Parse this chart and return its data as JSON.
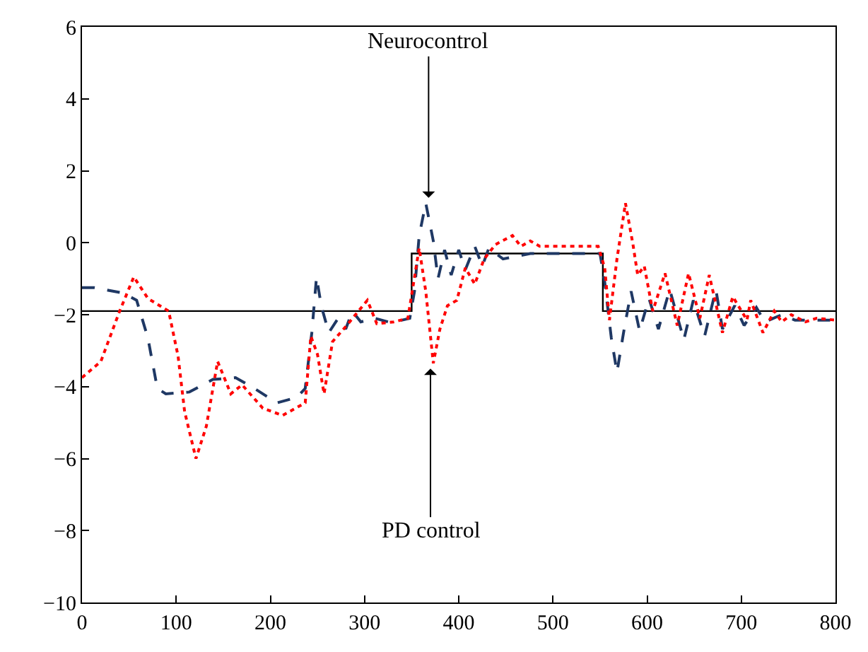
{
  "chart_data": {
    "type": "line",
    "xlim": [
      0,
      800
    ],
    "xticks": [
      0,
      100,
      200,
      300,
      400,
      500,
      600,
      700,
      800
    ],
    "ylim": [
      -10,
      6
    ],
    "yticks": [
      -10,
      -8,
      -6,
      -4,
      -2,
      0,
      2,
      4,
      6
    ],
    "series": [
      {
        "color": "#000000",
        "line_style": "solid",
        "x": [
          0,
          350,
          350,
          553,
          553,
          800
        ],
        "values": [
          -1.9,
          -1.9,
          -0.3,
          -0.3,
          -1.9,
          -1.9
        ]
      },
      {
        "color": "#1f3864",
        "line_style": "dashed",
        "x": [
          0,
          13,
          44,
          58,
          70,
          80,
          89,
          114,
          139,
          163,
          183,
          207,
          228,
          237,
          244,
          249,
          254,
          262,
          272,
          280,
          287,
          296,
          311,
          325,
          340,
          348,
          353,
          358,
          365,
          373,
          378,
          385,
          392,
          400,
          407,
          417,
          425,
          432,
          447,
          476,
          550,
          555,
          562,
          568,
          575,
          583,
          592,
          602,
          612,
          624,
          639,
          649,
          661,
          673,
          680,
          693,
          703,
          716,
          725,
          743,
          757,
          780,
          800
        ],
        "values": [
          -1.25,
          -1.25,
          -1.4,
          -1.6,
          -2.65,
          -4.05,
          -4.2,
          -4.15,
          -3.8,
          -3.75,
          -4.05,
          -4.45,
          -4.3,
          -4.05,
          -2.5,
          -0.95,
          -1.75,
          -2.5,
          -2.1,
          -2.4,
          -1.9,
          -2.2,
          -2.1,
          -2.2,
          -2.15,
          -2.1,
          -1.35,
          0.2,
          1.1,
          0.05,
          -1.0,
          -0.2,
          -0.9,
          -0.2,
          -0.75,
          -0.1,
          -0.65,
          -0.15,
          -0.45,
          -0.3,
          -0.3,
          -1.1,
          -2.65,
          -3.6,
          -2.5,
          -1.35,
          -2.45,
          -1.55,
          -2.4,
          -1.3,
          -2.7,
          -1.6,
          -2.6,
          -1.3,
          -2.4,
          -1.75,
          -2.3,
          -1.8,
          -2.2,
          -2.0,
          -2.15,
          -2.15,
          -2.15
        ]
      },
      {
        "color": "#ff0000",
        "line_style": "dotted",
        "x": [
          0,
          20,
          40,
          55,
          70,
          92,
          102,
          109,
          121,
          132,
          144,
          158,
          170,
          192,
          213,
          237,
          243,
          250,
          257,
          266,
          281,
          303,
          313,
          331,
          346,
          358,
          365,
          373,
          380,
          388,
          398,
          407,
          417,
          427,
          439,
          457,
          466,
          476,
          486,
          548,
          555,
          560,
          568,
          577,
          585,
          590,
          597,
          606,
          619,
          632,
          644,
          656,
          666,
          680,
          691,
          706,
          710,
          723,
          735,
          743,
          753,
          768,
          780,
          800
        ],
        "values": [
          -3.75,
          -3.3,
          -1.9,
          -0.95,
          -1.55,
          -1.9,
          -3.15,
          -4.7,
          -6.0,
          -5.1,
          -3.3,
          -4.2,
          -3.95,
          -4.6,
          -4.8,
          -4.45,
          -2.6,
          -3.1,
          -4.2,
          -2.75,
          -2.3,
          -1.6,
          -2.25,
          -2.2,
          -2.1,
          -0.15,
          -1.35,
          -3.35,
          -2.4,
          -1.75,
          -1.6,
          -0.7,
          -1.15,
          -0.45,
          -0.05,
          0.2,
          -0.1,
          0.05,
          -0.1,
          -0.1,
          -0.7,
          -2.15,
          -0.45,
          1.1,
          -0.05,
          -0.9,
          -0.65,
          -1.9,
          -0.85,
          -2.3,
          -0.85,
          -2.1,
          -0.9,
          -2.5,
          -1.5,
          -2.15,
          -1.6,
          -2.5,
          -1.9,
          -2.2,
          -2.0,
          -2.2,
          -2.1,
          -2.15
        ]
      }
    ],
    "annotations": [
      {
        "text": "Neurocontrol",
        "x": 368,
        "y": 1.25
      },
      {
        "text": "PD control",
        "x": 370,
        "y": -3.5
      }
    ]
  }
}
